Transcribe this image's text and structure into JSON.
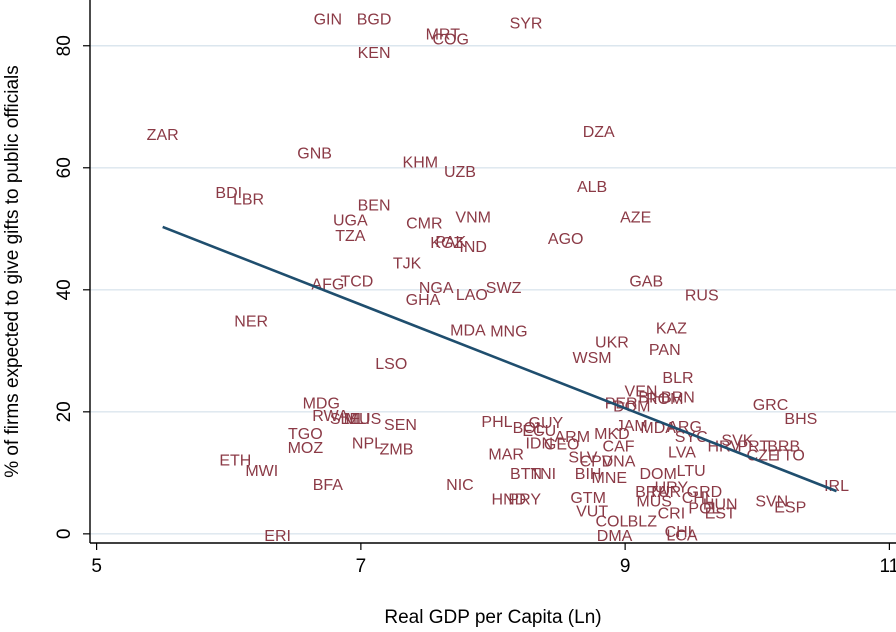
{
  "chart_data": {
    "type": "scatter",
    "xlabel": "Real GDP per Capita (Ln)",
    "ylabel": "% of firms expected to give gifts to public officials",
    "xlim": [
      4.95,
      11.05
    ],
    "ylim": [
      -1.5,
      87.5
    ],
    "xticks": [
      5,
      7,
      9,
      11
    ],
    "yticks": [
      0,
      20,
      40,
      60,
      80
    ],
    "grid": true,
    "marker": "country-code-label",
    "label_color": "#8b3a46",
    "fit_color": "#1f4e6e",
    "fit_line": {
      "x": [
        5.5,
        10.6
      ],
      "y": [
        50.3,
        7.0
      ]
    },
    "points": [
      {
        "label": "GIN",
        "x": 6.75,
        "y": 84.5
      },
      {
        "label": "BGD",
        "x": 7.1,
        "y": 84.5
      },
      {
        "label": "MRT",
        "x": 7.62,
        "y": 82.0
      },
      {
        "label": "COG",
        "x": 7.68,
        "y": 81.2
      },
      {
        "label": "SYR",
        "x": 8.25,
        "y": 83.8
      },
      {
        "label": "KEN",
        "x": 7.1,
        "y": 79.0
      },
      {
        "label": "ZAR",
        "x": 5.5,
        "y": 65.5
      },
      {
        "label": "DZA",
        "x": 8.8,
        "y": 66.0
      },
      {
        "label": "GNB",
        "x": 6.65,
        "y": 62.5
      },
      {
        "label": "KHM",
        "x": 7.45,
        "y": 61.0
      },
      {
        "label": "UZB",
        "x": 7.75,
        "y": 59.5
      },
      {
        "label": "BDI",
        "x": 6.0,
        "y": 56.0
      },
      {
        "label": "LBR",
        "x": 6.15,
        "y": 55.0
      },
      {
        "label": "ALB",
        "x": 8.75,
        "y": 57.0
      },
      {
        "label": "BEN",
        "x": 7.1,
        "y": 54.0
      },
      {
        "label": "VNM",
        "x": 7.85,
        "y": 52.0
      },
      {
        "label": "AZE",
        "x": 9.08,
        "y": 52.0
      },
      {
        "label": "UGA",
        "x": 6.92,
        "y": 51.5
      },
      {
        "label": "CMR",
        "x": 7.48,
        "y": 51.0
      },
      {
        "label": "TZA",
        "x": 6.92,
        "y": 49.0
      },
      {
        "label": "AGO",
        "x": 8.55,
        "y": 48.5
      },
      {
        "label": "PAK",
        "x": 7.68,
        "y": 48.0
      },
      {
        "label": "KGZ",
        "x": 7.65,
        "y": 47.8
      },
      {
        "label": "IND",
        "x": 7.85,
        "y": 47.2
      },
      {
        "label": "TJK",
        "x": 7.35,
        "y": 44.5
      },
      {
        "label": "TCD",
        "x": 6.97,
        "y": 41.5
      },
      {
        "label": "AFG",
        "x": 6.75,
        "y": 41.0
      },
      {
        "label": "GAB",
        "x": 9.16,
        "y": 41.5
      },
      {
        "label": "NGA",
        "x": 7.57,
        "y": 40.5
      },
      {
        "label": "SWZ",
        "x": 8.08,
        "y": 40.5
      },
      {
        "label": "LAO",
        "x": 7.84,
        "y": 39.3
      },
      {
        "label": "RUS",
        "x": 9.58,
        "y": 39.2
      },
      {
        "label": "GHA",
        "x": 7.47,
        "y": 38.5
      },
      {
        "label": "NER",
        "x": 6.17,
        "y": 35.0
      },
      {
        "label": "MDA",
        "x": 7.81,
        "y": 33.5
      },
      {
        "label": "MNG",
        "x": 8.12,
        "y": 33.3
      },
      {
        "label": "KAZ",
        "x": 9.35,
        "y": 33.8
      },
      {
        "label": "UKR",
        "x": 8.9,
        "y": 31.5
      },
      {
        "label": "PAN",
        "x": 9.3,
        "y": 30.3
      },
      {
        "label": "WSM",
        "x": 8.75,
        "y": 29.0
      },
      {
        "label": "LSO",
        "x": 7.23,
        "y": 28.0
      },
      {
        "label": "BLR",
        "x": 9.4,
        "y": 25.7
      },
      {
        "label": "VEN",
        "x": 9.12,
        "y": 23.5
      },
      {
        "label": "BIH",
        "x": 9.2,
        "y": 22.5
      },
      {
        "label": "BRN",
        "x": 9.4,
        "y": 22.5
      },
      {
        "label": "ROM",
        "x": 9.3,
        "y": 22.3
      },
      {
        "label": "PER",
        "x": 8.97,
        "y": 21.5
      },
      {
        "label": "DOM",
        "x": 9.05,
        "y": 21.0
      },
      {
        "label": "GRC",
        "x": 10.1,
        "y": 21.3
      },
      {
        "label": "BHS",
        "x": 10.33,
        "y": 19.0
      },
      {
        "label": "MDG",
        "x": 6.7,
        "y": 21.5
      },
      {
        "label": "RWA",
        "x": 6.77,
        "y": 19.5
      },
      {
        "label": "SLE",
        "x": 6.88,
        "y": 19.0
      },
      {
        "label": "MLI",
        "x": 6.97,
        "y": 19.0
      },
      {
        "label": "MUS",
        "x": 7.02,
        "y": 19.0
      },
      {
        "label": "SEN",
        "x": 7.3,
        "y": 18.0
      },
      {
        "label": "PHL",
        "x": 8.03,
        "y": 18.5
      },
      {
        "label": "GUY",
        "x": 8.4,
        "y": 18.3
      },
      {
        "label": "BOL",
        "x": 8.27,
        "y": 17.5
      },
      {
        "label": "ECU",
        "x": 8.35,
        "y": 17.0
      },
      {
        "label": "JAM",
        "x": 9.05,
        "y": 17.8
      },
      {
        "label": "MDA",
        "x": 9.25,
        "y": 17.5
      },
      {
        "label": "ARG",
        "x": 9.45,
        "y": 17.7
      },
      {
        "label": "MKD",
        "x": 8.9,
        "y": 16.5
      },
      {
        "label": "SYC",
        "x": 9.5,
        "y": 16.0
      },
      {
        "label": "TGO",
        "x": 6.58,
        "y": 16.5
      },
      {
        "label": "ARM",
        "x": 8.6,
        "y": 16.0
      },
      {
        "label": "SVK",
        "x": 9.85,
        "y": 15.5
      },
      {
        "label": "NPL",
        "x": 7.05,
        "y": 15.0
      },
      {
        "label": "IDN",
        "x": 8.35,
        "y": 15.0
      },
      {
        "label": "GEO",
        "x": 8.52,
        "y": 14.8
      },
      {
        "label": "CAF",
        "x": 8.95,
        "y": 14.5
      },
      {
        "label": "HRV",
        "x": 9.75,
        "y": 14.5
      },
      {
        "label": "PRT",
        "x": 9.97,
        "y": 14.5
      },
      {
        "label": "BRB",
        "x": 10.2,
        "y": 14.5
      },
      {
        "label": "MOZ",
        "x": 6.58,
        "y": 14.2
      },
      {
        "label": "ZMB",
        "x": 7.27,
        "y": 14.0
      },
      {
        "label": "LVA",
        "x": 9.43,
        "y": 13.5
      },
      {
        "label": "CZE",
        "x": 10.04,
        "y": 13.0
      },
      {
        "label": "TTO",
        "x": 10.24,
        "y": 13.0
      },
      {
        "label": "MAR",
        "x": 8.1,
        "y": 13.2
      },
      {
        "label": "SLV",
        "x": 8.68,
        "y": 12.7
      },
      {
        "label": "CPV",
        "x": 8.78,
        "y": 12.0
      },
      {
        "label": "DNA",
        "x": 8.95,
        "y": 12.0
      },
      {
        "label": "ETH",
        "x": 6.05,
        "y": 12.2
      },
      {
        "label": "MWI",
        "x": 6.25,
        "y": 10.5
      },
      {
        "label": "BTN",
        "x": 8.25,
        "y": 10.0
      },
      {
        "label": "TNI",
        "x": 8.38,
        "y": 10.0
      },
      {
        "label": "BIH",
        "x": 8.72,
        "y": 10.0
      },
      {
        "label": "DOM",
        "x": 9.25,
        "y": 10.0
      },
      {
        "label": "LTU",
        "x": 9.5,
        "y": 10.5
      },
      {
        "label": "MNE",
        "x": 8.88,
        "y": 9.3
      },
      {
        "label": "BFA",
        "x": 6.75,
        "y": 8.2
      },
      {
        "label": "NIC",
        "x": 7.75,
        "y": 8.2
      },
      {
        "label": "IRL",
        "x": 10.6,
        "y": 8.0
      },
      {
        "label": "URY",
        "x": 9.35,
        "y": 7.8
      },
      {
        "label": "TUR",
        "x": 9.3,
        "y": 7.0
      },
      {
        "label": "BRA",
        "x": 9.2,
        "y": 7.0
      },
      {
        "label": "GRD",
        "x": 9.6,
        "y": 7.0
      },
      {
        "label": "GTM",
        "x": 8.72,
        "y": 6.0
      },
      {
        "label": "MUS",
        "x": 9.22,
        "y": 5.5
      },
      {
        "label": "CHL",
        "x": 9.55,
        "y": 6.0
      },
      {
        "label": "HUN",
        "x": 9.72,
        "y": 5.0
      },
      {
        "label": "SVN",
        "x": 10.11,
        "y": 5.5
      },
      {
        "label": "HND",
        "x": 8.12,
        "y": 5.8
      },
      {
        "label": "PRY",
        "x": 8.24,
        "y": 5.8
      },
      {
        "label": "ESP",
        "x": 10.25,
        "y": 4.5
      },
      {
        "label": "POL",
        "x": 9.6,
        "y": 4.3
      },
      {
        "label": "CRI",
        "x": 9.35,
        "y": 3.5
      },
      {
        "label": "EST",
        "x": 9.72,
        "y": 3.5
      },
      {
        "label": "VUT",
        "x": 8.75,
        "y": 3.8
      },
      {
        "label": "COL",
        "x": 8.9,
        "y": 2.2
      },
      {
        "label": "BLZ",
        "x": 9.13,
        "y": 2.2
      },
      {
        "label": "CHL",
        "x": 9.42,
        "y": 0.5
      },
      {
        "label": "LCA",
        "x": 9.43,
        "y": -0.1
      },
      {
        "label": "DMA",
        "x": 8.92,
        "y": -0.2
      },
      {
        "label": "ERI",
        "x": 6.37,
        "y": -0.2
      }
    ]
  }
}
